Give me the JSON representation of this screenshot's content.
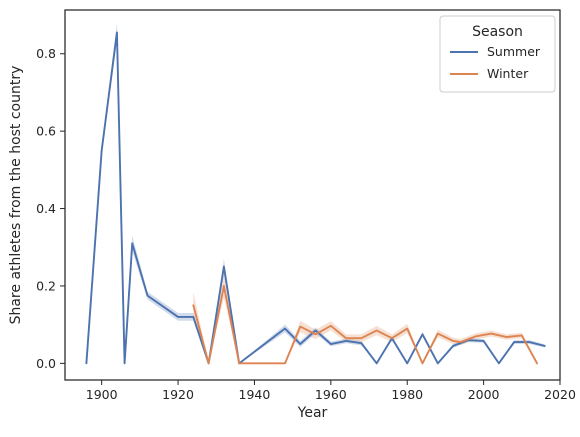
{
  "chart_data": {
    "type": "line",
    "title": "",
    "xlabel": "Year",
    "ylabel": "Share athletes from the host country",
    "xlim": [
      1890.4,
      2020
    ],
    "ylim": [
      -0.043,
      0.913
    ],
    "xticks": [
      1900,
      1920,
      1940,
      1960,
      1980,
      2000,
      2020
    ],
    "yticks": [
      0.0,
      0.2,
      0.4,
      0.6,
      0.8
    ],
    "ytick_labels": [
      "0.0",
      "0.2",
      "0.4",
      "0.6",
      "0.8"
    ],
    "grid": false,
    "legend": {
      "title": "Season",
      "placement": "top-right"
    },
    "series": [
      {
        "name": "Summer",
        "color": "#4c72b0",
        "x": [
          1896,
          1900,
          1904,
          1906,
          1908,
          1912,
          1920,
          1924,
          1928,
          1932,
          1936,
          1948,
          1952,
          1956,
          1960,
          1964,
          1968,
          1972,
          1976,
          1980,
          1984,
          1988,
          1992,
          1996,
          2000,
          2004,
          2008,
          2012,
          2016
        ],
        "y": [
          0.0,
          0.55,
          0.855,
          0.0,
          0.31,
          0.175,
          0.12,
          0.12,
          0.0,
          0.25,
          0.0,
          0.09,
          0.05,
          0.085,
          0.05,
          0.058,
          0.052,
          0.0,
          0.065,
          0.0,
          0.075,
          0.0,
          0.045,
          0.06,
          0.058,
          0.0,
          0.055,
          0.055,
          0.045
        ],
        "ci_halfwidth": [
          0.0,
          0.01,
          0.025,
          0.0,
          0.02,
          0.01,
          0.01,
          0.01,
          0.0,
          0.02,
          0.0,
          0.01,
          0.008,
          0.008,
          0.006,
          0.006,
          0.006,
          0.0,
          0.006,
          0.0,
          0.006,
          0.0,
          0.005,
          0.005,
          0.005,
          0.0,
          0.005,
          0.005,
          0.004
        ]
      },
      {
        "name": "Winter",
        "color": "#dd8452",
        "x": [
          1924,
          1928,
          1932,
          1936,
          1948,
          1952,
          1956,
          1960,
          1964,
          1968,
          1972,
          1976,
          1980,
          1984,
          1988,
          1992,
          1994,
          1998,
          2002,
          2006,
          2010,
          2014
        ],
        "y": [
          0.15,
          0.0,
          0.2,
          0.0,
          0.0,
          0.095,
          0.075,
          0.097,
          0.065,
          0.065,
          0.085,
          0.065,
          0.09,
          0.0,
          0.077,
          0.058,
          0.055,
          0.07,
          0.077,
          0.068,
          0.072,
          0.0
        ],
        "ci_halfwidth": [
          0.035,
          0.0,
          0.03,
          0.0,
          0.0,
          0.015,
          0.012,
          0.012,
          0.01,
          0.01,
          0.012,
          0.01,
          0.012,
          0.0,
          0.01,
          0.008,
          0.008,
          0.008,
          0.008,
          0.007,
          0.007,
          0.0
        ]
      }
    ]
  }
}
